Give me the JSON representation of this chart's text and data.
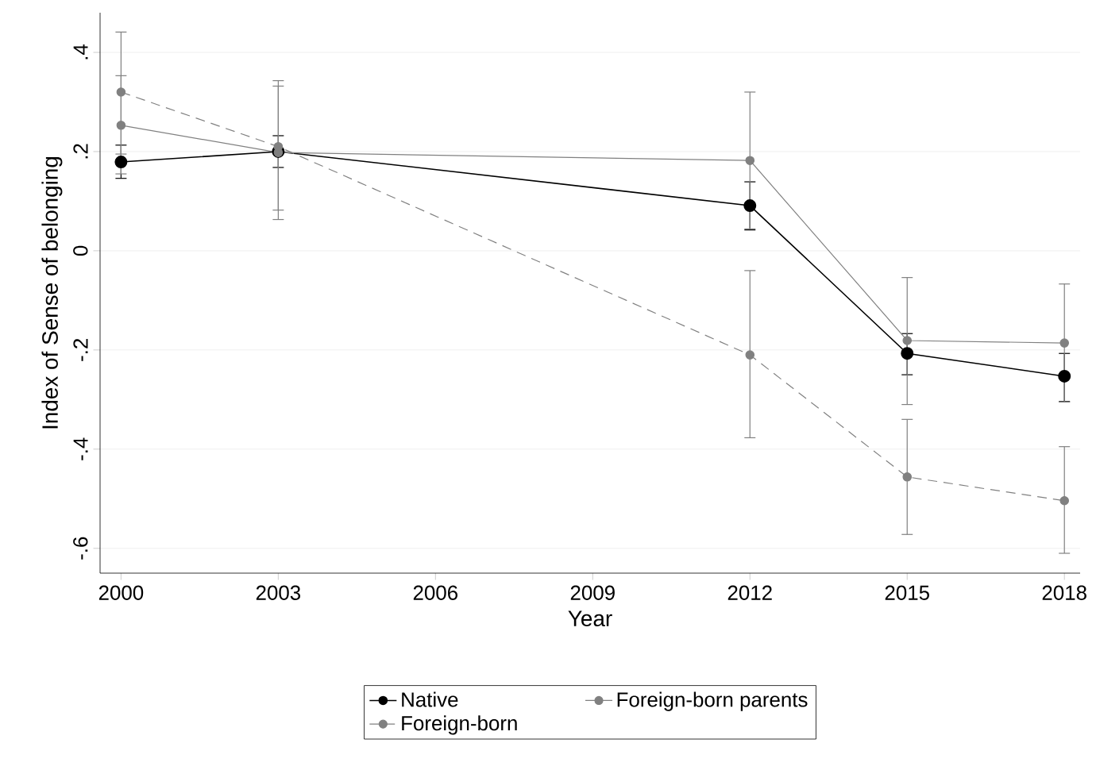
{
  "chart_data": {
    "type": "line",
    "xlabel": "Year",
    "ylabel": "Index of Sense of belonging",
    "x": [
      2000,
      2003,
      2012,
      2015,
      2018
    ],
    "xlim": [
      1999.6,
      2018.3
    ],
    "xticks": [
      2000,
      2003,
      2006,
      2009,
      2012,
      2015,
      2018
    ],
    "ylim": [
      -0.65,
      0.48
    ],
    "yticks": [
      {
        "value": -0.6,
        "label": "-.6"
      },
      {
        "value": -0.4,
        "label": "-.4"
      },
      {
        "value": -0.2,
        "label": "-.2"
      },
      0,
      {
        "value": 0.2,
        "label": ".2"
      },
      {
        "value": 0.4,
        "label": ".4"
      }
    ],
    "grid": "y",
    "legend": "bottom",
    "marker": "circle",
    "series": [
      {
        "name": "Native",
        "color": "#000000",
        "line_style": "solid",
        "values": [
          0.179,
          0.2,
          0.091,
          -0.207,
          -0.253
        ],
        "errors": [
          [
            0.146,
            0.213
          ],
          [
            0.168,
            0.232
          ],
          [
            0.042,
            0.139
          ],
          [
            -0.25,
            -0.167
          ],
          [
            -0.304,
            -0.207
          ]
        ]
      },
      {
        "name": "Foreign-born parents",
        "color": "#808080",
        "line_style": "solid",
        "values": [
          0.253,
          0.198,
          0.182,
          -0.181,
          -0.186
        ],
        "errors": [
          [
            0.155,
            0.353
          ],
          [
            0.063,
            0.332
          ],
          [
            0.044,
            0.32
          ],
          [
            -0.31,
            -0.054
          ],
          [
            -0.305,
            -0.067
          ]
        ]
      },
      {
        "name": "Foreign-born",
        "color": "#808080",
        "line_style": "dashed",
        "values": [
          0.32,
          0.21,
          -0.21,
          -0.456,
          -0.504
        ],
        "errors": [
          [
            0.195,
            0.441
          ],
          [
            0.082,
            0.343
          ],
          [
            -0.377,
            -0.04
          ],
          [
            -0.572,
            -0.34
          ],
          [
            -0.61,
            -0.395
          ]
        ]
      }
    ]
  }
}
